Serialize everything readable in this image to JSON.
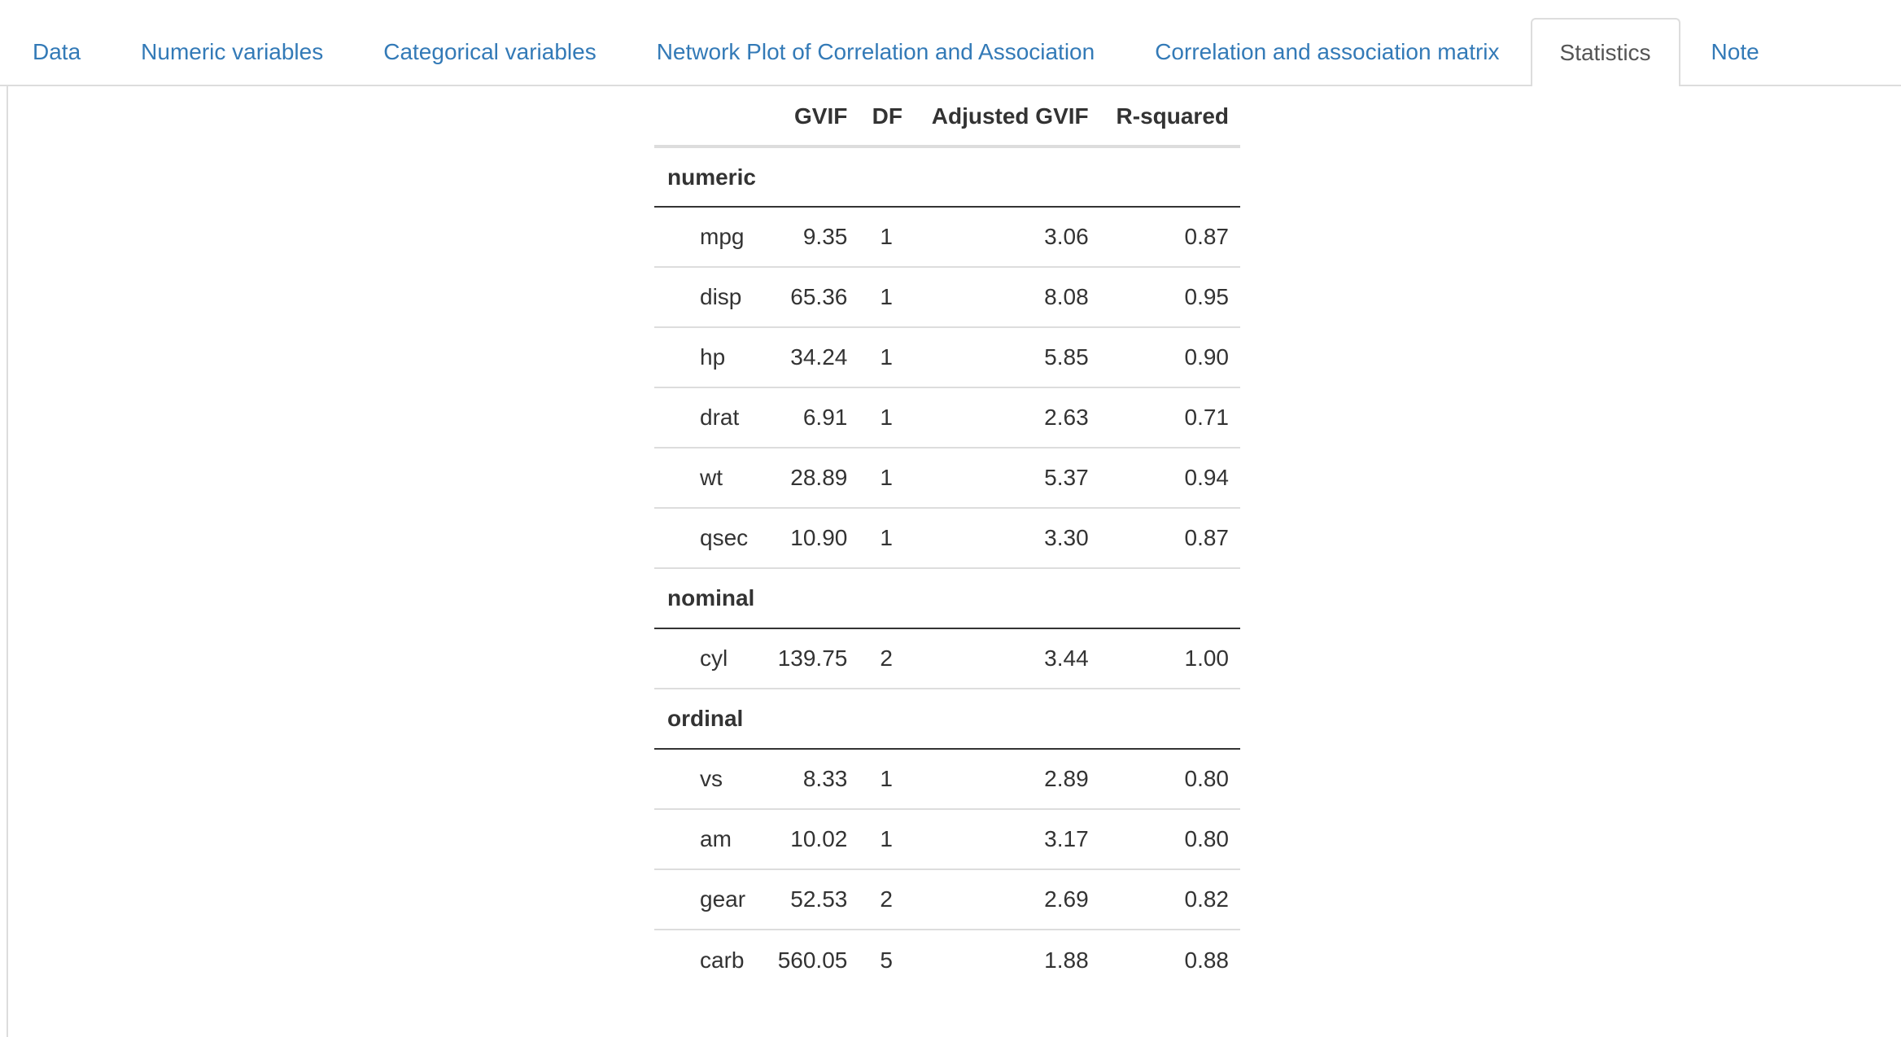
{
  "tabs": [
    {
      "label": "Data",
      "active": false
    },
    {
      "label": "Numeric variables",
      "active": false
    },
    {
      "label": "Categorical variables",
      "active": false
    },
    {
      "label": "Network Plot of Correlation and Association",
      "active": false
    },
    {
      "label": "Correlation and association matrix",
      "active": false
    },
    {
      "label": "Statistics",
      "active": true
    },
    {
      "label": "Note",
      "active": false
    }
  ],
  "table": {
    "headers": [
      "",
      "GVIF",
      "DF",
      "Adjusted GVIF",
      "R-squared"
    ],
    "groups": [
      {
        "name": "numeric",
        "rows": [
          {
            "variable": "mpg",
            "gvif": "9.35",
            "df": "1",
            "adj_gvif": "3.06",
            "r_squared": "0.87"
          },
          {
            "variable": "disp",
            "gvif": "65.36",
            "df": "1",
            "adj_gvif": "8.08",
            "r_squared": "0.95"
          },
          {
            "variable": "hp",
            "gvif": "34.24",
            "df": "1",
            "adj_gvif": "5.85",
            "r_squared": "0.90"
          },
          {
            "variable": "drat",
            "gvif": "6.91",
            "df": "1",
            "adj_gvif": "2.63",
            "r_squared": "0.71"
          },
          {
            "variable": "wt",
            "gvif": "28.89",
            "df": "1",
            "adj_gvif": "5.37",
            "r_squared": "0.94"
          },
          {
            "variable": "qsec",
            "gvif": "10.90",
            "df": "1",
            "adj_gvif": "3.30",
            "r_squared": "0.87"
          }
        ]
      },
      {
        "name": "nominal",
        "rows": [
          {
            "variable": "cyl",
            "gvif": "139.75",
            "df": "2",
            "adj_gvif": "3.44",
            "r_squared": "1.00"
          }
        ]
      },
      {
        "name": "ordinal",
        "rows": [
          {
            "variable": "vs",
            "gvif": "8.33",
            "df": "1",
            "adj_gvif": "2.89",
            "r_squared": "0.80"
          },
          {
            "variable": "am",
            "gvif": "10.02",
            "df": "1",
            "adj_gvif": "3.17",
            "r_squared": "0.80"
          },
          {
            "variable": "gear",
            "gvif": "52.53",
            "df": "2",
            "adj_gvif": "2.69",
            "r_squared": "0.82"
          },
          {
            "variable": "carb",
            "gvif": "560.05",
            "df": "5",
            "adj_gvif": "1.88",
            "r_squared": "0.88"
          }
        ]
      }
    ]
  },
  "colors": {
    "link": "#337ab7",
    "active_tab_text": "#555555",
    "border": "#dddddd",
    "text": "#333333"
  }
}
